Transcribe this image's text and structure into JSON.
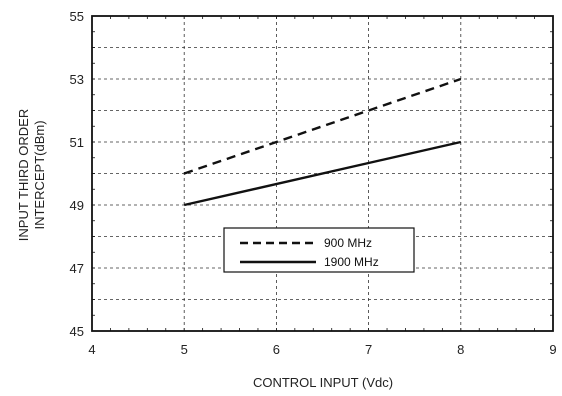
{
  "chart_data": {
    "type": "line",
    "title": "",
    "xlabel": "CONTROL INPUT (Vdc)",
    "ylabel_lines": [
      "INPUT THIRD ORDER",
      "INTERCEPT(dBm)"
    ],
    "xlim": [
      4,
      9
    ],
    "ylim": [
      45,
      55
    ],
    "x_ticks": [
      4,
      5,
      6,
      7,
      8,
      9
    ],
    "y_ticks": [
      45,
      47,
      49,
      51,
      53,
      55
    ],
    "grid": true,
    "grid_style": "dashed",
    "legend_position": "center-bottom",
    "series": [
      {
        "name": "900 MHz",
        "style": "dashed",
        "color": "#111111",
        "x": [
          5,
          8
        ],
        "y": [
          50,
          53
        ]
      },
      {
        "name": "1900 MHz",
        "style": "solid",
        "color": "#111111",
        "x": [
          5,
          8
        ],
        "y": [
          49,
          51
        ]
      }
    ]
  }
}
